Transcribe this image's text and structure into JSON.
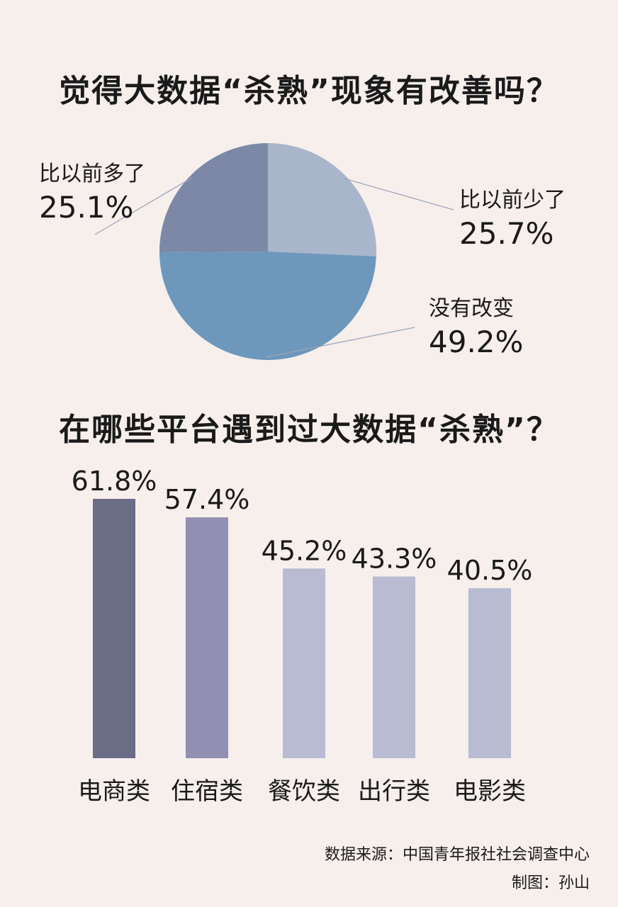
{
  "chart_data": [
    {
      "type": "pie",
      "title": "觉得大数据“杀熟”现象有改善吗？",
      "slices": [
        {
          "label": "比以前少了",
          "value": 25.7,
          "value_label": "25.7%",
          "color": "#a9b5cb"
        },
        {
          "label": "没有改变",
          "value": 49.2,
          "value_label": "49.2%",
          "color": "#6d97bb"
        },
        {
          "label": "比以前多了",
          "value": 25.1,
          "value_label": "25.1%",
          "color": "#7d88a6"
        }
      ]
    },
    {
      "type": "bar",
      "title": "在哪些平台遇到过大数据“杀熟”？",
      "categories": [
        "电商类",
        "住宿类",
        "餐饮类",
        "出行类",
        "电影类"
      ],
      "values": [
        61.8,
        57.4,
        45.2,
        43.3,
        40.5
      ],
      "value_labels": [
        "61.8%",
        "57.4%",
        "45.2%",
        "43.3%",
        "40.5%"
      ],
      "colors": [
        "#6b6c86",
        "#9190b2",
        "#b9bbd2",
        "#b9bbd2",
        "#b9bbd2"
      ],
      "ylim": [
        0,
        62
      ]
    }
  ],
  "footer": {
    "source": "数据来源：中国青年报社社会调查中心",
    "credit": "制图：孙山"
  }
}
